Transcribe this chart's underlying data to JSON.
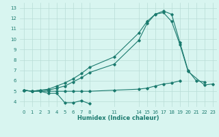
{
  "xlabel": "Humidex (Indice chaleur)",
  "background_color": "#d8f5f0",
  "grid_color": "#b8dcd6",
  "line_color": "#1a7a6e",
  "xlim": [
    -0.5,
    23.5
  ],
  "ylim": [
    3.5,
    13.5
  ],
  "xticks": [
    0,
    1,
    2,
    3,
    4,
    5,
    6,
    7,
    8,
    11,
    14,
    15,
    16,
    17,
    18,
    19,
    20,
    21,
    22,
    23
  ],
  "yticks": [
    4,
    5,
    6,
    7,
    8,
    9,
    10,
    11,
    12,
    13
  ],
  "series": [
    {
      "x": [
        0,
        1,
        2,
        3,
        4,
        5,
        6,
        7,
        8
      ],
      "y": [
        5.1,
        5.0,
        5.0,
        4.8,
        4.8,
        3.9,
        3.9,
        4.1,
        3.8
      ]
    },
    {
      "x": [
        0,
        1,
        2,
        3,
        4,
        5,
        6,
        7,
        8,
        11,
        14,
        15,
        16,
        17,
        18,
        19
      ],
      "y": [
        5.1,
        5.0,
        5.0,
        5.0,
        5.0,
        5.0,
        5.0,
        5.0,
        5.0,
        5.1,
        5.2,
        5.3,
        5.5,
        5.7,
        5.8,
        6.0
      ]
    },
    {
      "x": [
        0,
        1,
        2,
        3,
        4,
        5,
        6,
        7,
        8,
        11,
        14,
        15,
        16,
        17,
        18,
        19,
        20,
        21,
        22
      ],
      "y": [
        5.1,
        5.0,
        5.1,
        5.1,
        5.3,
        5.5,
        5.9,
        6.3,
        6.8,
        7.6,
        9.9,
        11.5,
        12.4,
        12.7,
        12.4,
        9.7,
        7.0,
        6.0,
        5.9
      ]
    },
    {
      "x": [
        0,
        1,
        2,
        3,
        4,
        5,
        6,
        7,
        8,
        11,
        14,
        15,
        16,
        17,
        18,
        19,
        20,
        22,
        23
      ],
      "y": [
        5.1,
        5.0,
        5.1,
        5.2,
        5.5,
        5.8,
        6.2,
        6.7,
        7.3,
        8.3,
        10.6,
        11.7,
        12.4,
        12.55,
        11.7,
        9.5,
        6.9,
        5.6,
        5.7
      ]
    }
  ]
}
